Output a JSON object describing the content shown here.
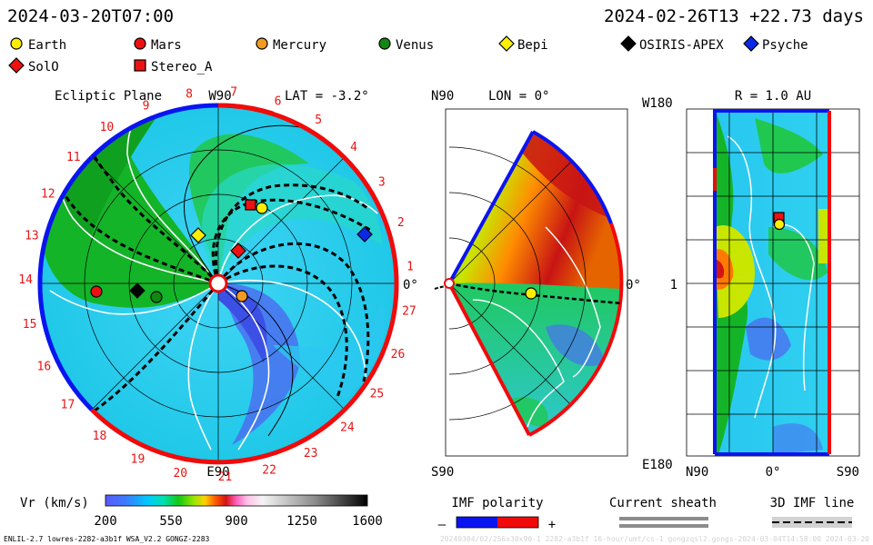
{
  "header": {
    "left_time": "2024-03-20T07:00",
    "right_time": "2024-02-26T13 +22.73 days"
  },
  "legend": [
    {
      "label": "Earth",
      "shape": "circle",
      "color": "#ffee00"
    },
    {
      "label": "Mars",
      "shape": "circle",
      "color": "#ee1111"
    },
    {
      "label": "Mercury",
      "shape": "circle",
      "color": "#f49a22"
    },
    {
      "label": "Venus",
      "shape": "circle",
      "color": "#118811"
    },
    {
      "label": "Bepi",
      "shape": "diamond",
      "color": "#ffee00"
    },
    {
      "label": "OSIRIS-APEX",
      "shape": "diamond",
      "color": "#000000"
    },
    {
      "label": "Psyche",
      "shape": "diamond",
      "color": "#0a28e6"
    },
    {
      "label": "SolO",
      "shape": "diamond",
      "color": "#ee1111"
    },
    {
      "label": "Stereo_A",
      "shape": "square",
      "color": "#ee1111"
    }
  ],
  "ecliptic": {
    "title": "Ecliptic Plane",
    "top_label": "W90",
    "lat_label": "LAT = -3.2°",
    "right_label": "0°",
    "bottom_label": "E90",
    "carrington_ticks": [
      "1",
      "2",
      "3",
      "4",
      "5",
      "6",
      "7",
      "8",
      "9",
      "10",
      "11",
      "12",
      "13",
      "14",
      "15",
      "16",
      "17",
      "18",
      "19",
      "20",
      "21",
      "22",
      "23",
      "24",
      "25",
      "26",
      "27"
    ]
  },
  "meridional": {
    "top_label": "N90",
    "lon_label": "LON = 0°",
    "right_label": "0°",
    "bottom_label": "S90"
  },
  "radial": {
    "title": "R = 1.0 AU",
    "top_left": "W180",
    "mid_left": "1",
    "bottom_left": "E180",
    "x_left": "N90",
    "x_mid": "0°",
    "x_right": "S90"
  },
  "colorbar": {
    "title": "Vr (km/s)",
    "ticks": [
      "200",
      "550",
      "900",
      "1250",
      "1600"
    ],
    "range": [
      200,
      1600
    ]
  },
  "imf": {
    "title": "IMF polarity",
    "minus": "–",
    "plus": "+",
    "negative_color": "#0a14f0",
    "positive_color": "#f00a0a"
  },
  "sheath": {
    "title": "Current sheath"
  },
  "imf3d": {
    "title": "3D IMF line"
  },
  "footer": {
    "left": "ENLIL-2.7 lowres-2282-a3b1f WSA_V2.2 GONGZ-2283",
    "right": "20240304/02/256x30x90-1 2282-a3b1f 16-hour/umt/cs-1 gongzqsl2.gongs-2024-03-04T14:58:00 2024-03-20"
  },
  "chart_data": [
    {
      "type": "heatmap",
      "title": "Ecliptic Plane",
      "variable": "Vr (km/s)",
      "value_range": [
        200,
        1600
      ],
      "bodies": [
        "Earth",
        "Mars",
        "Mercury",
        "Venus",
        "Bepi",
        "OSIRIS-APEX",
        "Psyche",
        "SolO",
        "Stereo_A"
      ]
    },
    {
      "type": "heatmap",
      "title": "LON = 0°",
      "variable": "Vr (km/s)",
      "value_range": [
        200,
        1600
      ],
      "bodies": [
        "Earth"
      ]
    },
    {
      "type": "heatmap",
      "title": "R = 1.0 AU",
      "variable": "Vr (km/s)",
      "value_range": [
        200,
        1600
      ],
      "x_range": [
        "N90",
        "S90"
      ],
      "y_range": [
        "E180",
        "W180"
      ],
      "bodies": [
        "Earth",
        "Stereo_A"
      ]
    }
  ]
}
